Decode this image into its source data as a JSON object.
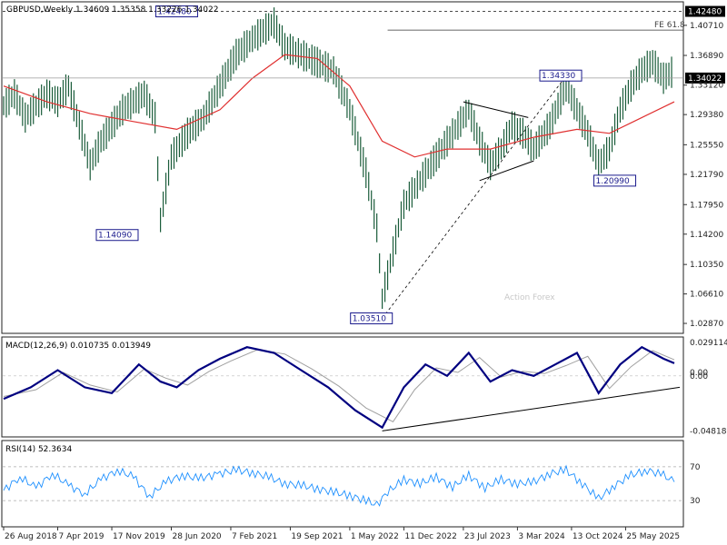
{
  "chart_data": {
    "type": "line",
    "symbol": "GBPUSD",
    "timeframe": "Weekly",
    "header": "GBPUSD,Weekly  1.34609 1.35358 1.33226 1.34022",
    "watermark": "Action Forex",
    "price": {
      "ylim": [
        1.0172,
        1.4358
      ],
      "y_ticks": [
        "1.42480",
        "1.40710",
        "1.36890",
        "1.34022",
        "1.33120",
        "1.29380",
        "1.25550",
        "1.21790",
        "1.17950",
        "1.14200",
        "1.10350",
        "1.06610",
        "1.02870"
      ],
      "last_price": 1.34022,
      "labels": [
        {
          "text": "1.42480",
          "x": 32,
          "y": 1.4248
        },
        {
          "text": "1.14090",
          "x": 21,
          "y": 1.1409
        },
        {
          "text": "1.03510",
          "x": 68,
          "y": 1.0351
        },
        {
          "text": "1.34330",
          "x": 103,
          "y": 1.3433
        },
        {
          "text": "1.20990",
          "x": 113,
          "y": 1.2099
        }
      ],
      "fib_label": "FE 61.8",
      "fib_level": 1.4011,
      "fib_x_start": 71,
      "high_level": 1.4248,
      "ma_color": "#e03030",
      "bar_color": "#1a5c3a",
      "series": [
        {
          "x": 0,
          "v": 1.305
        },
        {
          "x": 2,
          "v": 1.32
        },
        {
          "x": 4,
          "v": 1.29
        },
        {
          "x": 6,
          "v": 1.305
        },
        {
          "x": 8,
          "v": 1.32
        },
        {
          "x": 10,
          "v": 1.31
        },
        {
          "x": 12,
          "v": 1.33
        },
        {
          "x": 14,
          "v": 1.28
        },
        {
          "x": 16,
          "v": 1.23
        },
        {
          "x": 18,
          "v": 1.26
        },
        {
          "x": 20,
          "v": 1.28
        },
        {
          "x": 22,
          "v": 1.3
        },
        {
          "x": 24,
          "v": 1.31
        },
        {
          "x": 26,
          "v": 1.32
        },
        {
          "x": 28,
          "v": 1.29
        },
        {
          "x": 29,
          "v": 1.16
        },
        {
          "x": 31,
          "v": 1.24
        },
        {
          "x": 34,
          "v": 1.27
        },
        {
          "x": 37,
          "v": 1.29
        },
        {
          "x": 40,
          "v": 1.33
        },
        {
          "x": 43,
          "v": 1.37
        },
        {
          "x": 46,
          "v": 1.39
        },
        {
          "x": 48,
          "v": 1.4
        },
        {
          "x": 50,
          "v": 1.41
        },
        {
          "x": 52,
          "v": 1.38
        },
        {
          "x": 55,
          "v": 1.37
        },
        {
          "x": 58,
          "v": 1.36
        },
        {
          "x": 61,
          "v": 1.35
        },
        {
          "x": 64,
          "v": 1.3
        },
        {
          "x": 67,
          "v": 1.22
        },
        {
          "x": 69,
          "v": 1.15
        },
        {
          "x": 70,
          "v": 1.06
        },
        {
          "x": 72,
          "v": 1.12
        },
        {
          "x": 74,
          "v": 1.18
        },
        {
          "x": 77,
          "v": 1.21
        },
        {
          "x": 80,
          "v": 1.24
        },
        {
          "x": 83,
          "v": 1.27
        },
        {
          "x": 86,
          "v": 1.3
        },
        {
          "x": 88,
          "v": 1.26
        },
        {
          "x": 90,
          "v": 1.23
        },
        {
          "x": 92,
          "v": 1.25
        },
        {
          "x": 94,
          "v": 1.28
        },
        {
          "x": 96,
          "v": 1.27
        },
        {
          "x": 98,
          "v": 1.25
        },
        {
          "x": 101,
          "v": 1.28
        },
        {
          "x": 104,
          "v": 1.33
        },
        {
          "x": 106,
          "v": 1.3
        },
        {
          "x": 108,
          "v": 1.27
        },
        {
          "x": 110,
          "v": 1.23
        },
        {
          "x": 112,
          "v": 1.25
        },
        {
          "x": 114,
          "v": 1.3
        },
        {
          "x": 116,
          "v": 1.33
        },
        {
          "x": 118,
          "v": 1.35
        },
        {
          "x": 120,
          "v": 1.36
        },
        {
          "x": 122,
          "v": 1.34
        },
        {
          "x": 124,
          "v": 1.35
        }
      ],
      "ma": [
        {
          "x": 0,
          "v": 1.33
        },
        {
          "x": 8,
          "v": 1.31
        },
        {
          "x": 16,
          "v": 1.295
        },
        {
          "x": 24,
          "v": 1.285
        },
        {
          "x": 32,
          "v": 1.275
        },
        {
          "x": 40,
          "v": 1.3
        },
        {
          "x": 46,
          "v": 1.34
        },
        {
          "x": 52,
          "v": 1.37
        },
        {
          "x": 58,
          "v": 1.365
        },
        {
          "x": 64,
          "v": 1.33
        },
        {
          "x": 70,
          "v": 1.26
        },
        {
          "x": 76,
          "v": 1.24
        },
        {
          "x": 82,
          "v": 1.25
        },
        {
          "x": 90,
          "v": 1.25
        },
        {
          "x": 98,
          "v": 1.265
        },
        {
          "x": 106,
          "v": 1.275
        },
        {
          "x": 112,
          "v": 1.27
        },
        {
          "x": 118,
          "v": 1.29
        },
        {
          "x": 124,
          "v": 1.31
        }
      ]
    },
    "macd": {
      "label": "MACD(12,26,9) 0.010735 0.013949",
      "ylim": [
        -0.0524,
        0.0331
      ],
      "y_ticks": [
        "0.029114",
        "0.00",
        "0.00",
        "-0.048189"
      ],
      "macd_color": "#000080",
      "signal_color": "#a0a0a0",
      "series": [
        {
          "x": 0,
          "v": -0.02
        },
        {
          "x": 5,
          "v": -0.01
        },
        {
          "x": 10,
          "v": 0.005
        },
        {
          "x": 15,
          "v": -0.01
        },
        {
          "x": 20,
          "v": -0.015
        },
        {
          "x": 25,
          "v": 0.01
        },
        {
          "x": 29,
          "v": -0.005
        },
        {
          "x": 32,
          "v": -0.01
        },
        {
          "x": 36,
          "v": 0.005
        },
        {
          "x": 40,
          "v": 0.015
        },
        {
          "x": 45,
          "v": 0.025
        },
        {
          "x": 50,
          "v": 0.02
        },
        {
          "x": 55,
          "v": 0.005
        },
        {
          "x": 60,
          "v": -0.01
        },
        {
          "x": 65,
          "v": -0.03
        },
        {
          "x": 70,
          "v": -0.045
        },
        {
          "x": 74,
          "v": -0.01
        },
        {
          "x": 78,
          "v": 0.01
        },
        {
          "x": 82,
          "v": 0.0
        },
        {
          "x": 86,
          "v": 0.02
        },
        {
          "x": 90,
          "v": -0.005
        },
        {
          "x": 94,
          "v": 0.005
        },
        {
          "x": 98,
          "v": 0.0
        },
        {
          "x": 102,
          "v": 0.01
        },
        {
          "x": 106,
          "v": 0.02
        },
        {
          "x": 110,
          "v": -0.015
        },
        {
          "x": 114,
          "v": 0.01
        },
        {
          "x": 118,
          "v": 0.025
        },
        {
          "x": 122,
          "v": 0.015
        },
        {
          "x": 124,
          "v": 0.011
        }
      ],
      "signal": [
        {
          "x": 0,
          "v": -0.018
        },
        {
          "x": 6,
          "v": -0.012
        },
        {
          "x": 11,
          "v": 0.003
        },
        {
          "x": 16,
          "v": -0.008
        },
        {
          "x": 21,
          "v": -0.014
        },
        {
          "x": 26,
          "v": 0.006
        },
        {
          "x": 30,
          "v": -0.002
        },
        {
          "x": 34,
          "v": -0.008
        },
        {
          "x": 38,
          "v": 0.004
        },
        {
          "x": 42,
          "v": 0.013
        },
        {
          "x": 47,
          "v": 0.023
        },
        {
          "x": 52,
          "v": 0.019
        },
        {
          "x": 57,
          "v": 0.006
        },
        {
          "x": 62,
          "v": -0.009
        },
        {
          "x": 67,
          "v": -0.028
        },
        {
          "x": 72,
          "v": -0.04
        },
        {
          "x": 76,
          "v": -0.012
        },
        {
          "x": 80,
          "v": 0.007
        },
        {
          "x": 84,
          "v": 0.003
        },
        {
          "x": 88,
          "v": 0.016
        },
        {
          "x": 92,
          "v": -0.001
        },
        {
          "x": 96,
          "v": 0.004
        },
        {
          "x": 100,
          "v": 0.002
        },
        {
          "x": 104,
          "v": 0.009
        },
        {
          "x": 108,
          "v": 0.017
        },
        {
          "x": 112,
          "v": -0.011
        },
        {
          "x": 116,
          "v": 0.008
        },
        {
          "x": 120,
          "v": 0.022
        },
        {
          "x": 124,
          "v": 0.014
        }
      ],
      "trendline": [
        {
          "x": 70,
          "v": -0.048
        },
        {
          "x": 125,
          "v": -0.01
        }
      ]
    },
    "rsi": {
      "label": "RSI(14) 52.3634",
      "ylim": [
        0,
        100
      ],
      "y_ticks": [
        "70",
        "30"
      ],
      "levels": [
        70,
        30
      ],
      "color": "#1e90ff",
      "series": [
        {
          "x": 0,
          "v": 42
        },
        {
          "x": 3,
          "v": 58
        },
        {
          "x": 6,
          "v": 45
        },
        {
          "x": 9,
          "v": 62
        },
        {
          "x": 12,
          "v": 48
        },
        {
          "x": 15,
          "v": 38
        },
        {
          "x": 18,
          "v": 55
        },
        {
          "x": 21,
          "v": 66
        },
        {
          "x": 24,
          "v": 58
        },
        {
          "x": 27,
          "v": 35
        },
        {
          "x": 30,
          "v": 52
        },
        {
          "x": 33,
          "v": 60
        },
        {
          "x": 36,
          "v": 56
        },
        {
          "x": 40,
          "v": 62
        },
        {
          "x": 43,
          "v": 66
        },
        {
          "x": 46,
          "v": 63
        },
        {
          "x": 49,
          "v": 58
        },
        {
          "x": 52,
          "v": 50
        },
        {
          "x": 55,
          "v": 48
        },
        {
          "x": 58,
          "v": 44
        },
        {
          "x": 61,
          "v": 40
        },
        {
          "x": 64,
          "v": 36
        },
        {
          "x": 67,
          "v": 30
        },
        {
          "x": 69,
          "v": 25
        },
        {
          "x": 71,
          "v": 40
        },
        {
          "x": 74,
          "v": 55
        },
        {
          "x": 77,
          "v": 50
        },
        {
          "x": 80,
          "v": 58
        },
        {
          "x": 83,
          "v": 46
        },
        {
          "x": 86,
          "v": 60
        },
        {
          "x": 89,
          "v": 45
        },
        {
          "x": 92,
          "v": 55
        },
        {
          "x": 95,
          "v": 50
        },
        {
          "x": 98,
          "v": 52
        },
        {
          "x": 101,
          "v": 62
        },
        {
          "x": 104,
          "v": 66
        },
        {
          "x": 107,
          "v": 50
        },
        {
          "x": 110,
          "v": 32
        },
        {
          "x": 113,
          "v": 48
        },
        {
          "x": 116,
          "v": 60
        },
        {
          "x": 119,
          "v": 66
        },
        {
          "x": 122,
          "v": 60
        },
        {
          "x": 124,
          "v": 52
        }
      ]
    },
    "x_axis": {
      "xlim": [
        0,
        124
      ],
      "ticks": [
        {
          "label": "26 Aug 2018",
          "x": 0
        },
        {
          "label": "7 Apr 2019",
          "x": 10
        },
        {
          "label": "17 Nov 2019",
          "x": 20
        },
        {
          "label": "28 Jun 2020",
          "x": 31
        },
        {
          "label": "7 Feb 2021",
          "x": 42
        },
        {
          "label": "19 Sep 2021",
          "x": 53
        },
        {
          "label": "1 May 2022",
          "x": 64
        },
        {
          "label": "11 Dec 2022",
          "x": 74
        },
        {
          "label": "23 Jul 2023",
          "x": 85
        },
        {
          "label": "3 Mar 2024",
          "x": 95
        },
        {
          "label": "13 Oct 2024",
          "x": 105
        },
        {
          "label": "25 May 2025",
          "x": 115
        }
      ]
    },
    "annotation_lines": {
      "triangle_top": [
        {
          "x": 85,
          "v": 1.31
        },
        {
          "x": 97,
          "v": 1.29
        }
      ],
      "triangle_bottom": [
        {
          "x": 88,
          "v": 1.21
        },
        {
          "x": 98,
          "v": 1.235
        }
      ],
      "channel_dashed": [
        {
          "x": 70,
          "v": 1.035
        },
        {
          "x": 104,
          "v": 1.343
        }
      ]
    }
  }
}
